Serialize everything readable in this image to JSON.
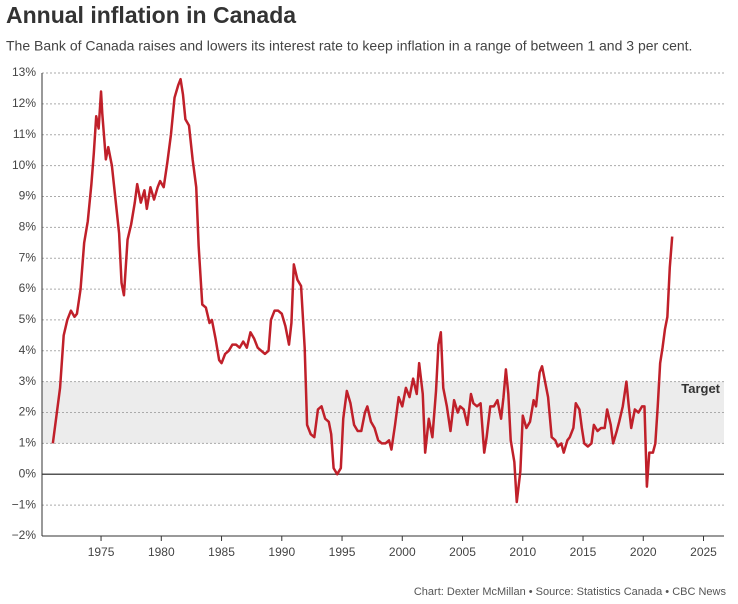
{
  "chart_data": {
    "type": "line",
    "title": "Annual inflation in Canada",
    "subtitle": "The Bank of Canada raises and lowers its interest rate to keep inflation in a range of between 1 and 3 per cent.",
    "credit": "Chart: Dexter McMillan • Source: Statistics Canada • CBC News",
    "color": "#c0202a",
    "grid": true,
    "xlim": [
      1970.1,
      2026.7
    ],
    "xticks": [
      1975,
      1980,
      1985,
      1990,
      1995,
      2000,
      2005,
      2010,
      2015,
      2020,
      2025
    ],
    "ylim": [
      -2,
      13
    ],
    "yticks": [
      {
        "value": -2,
        "label": "−2%"
      },
      {
        "value": -1,
        "label": "−1%"
      },
      {
        "value": 0,
        "label": "0%"
      },
      {
        "value": 1,
        "label": "1%"
      },
      {
        "value": 2,
        "label": "2%"
      },
      {
        "value": 3,
        "label": "3%"
      },
      {
        "value": 4,
        "label": "4%"
      },
      {
        "value": 5,
        "label": "5%"
      },
      {
        "value": 6,
        "label": "6%"
      },
      {
        "value": 7,
        "label": "7%"
      },
      {
        "value": 8,
        "label": "8%"
      },
      {
        "value": 9,
        "label": "9%"
      },
      {
        "value": 10,
        "label": "10%"
      },
      {
        "value": 11,
        "label": "11%"
      },
      {
        "value": 12,
        "label": "12%"
      },
      {
        "value": 13,
        "label": "13%"
      }
    ],
    "band": {
      "from": 1,
      "to": 3,
      "label": "Target",
      "color": "#ececec"
    },
    "x": [
      1971.0,
      1971.3,
      1971.6,
      1971.9,
      1972.2,
      1972.5,
      1972.8,
      1973.0,
      1973.3,
      1973.6,
      1973.9,
      1974.2,
      1974.4,
      1974.6,
      1974.8,
      1975.0,
      1975.1,
      1975.4,
      1975.6,
      1975.9,
      1976.2,
      1976.5,
      1976.7,
      1976.9,
      1977.2,
      1977.5,
      1977.8,
      1978.0,
      1978.3,
      1978.6,
      1978.8,
      1979.1,
      1979.4,
      1979.7,
      1979.9,
      1980.2,
      1980.5,
      1980.8,
      1981.1,
      1981.4,
      1981.6,
      1981.8,
      1982.0,
      1982.3,
      1982.6,
      1982.9,
      1983.1,
      1983.4,
      1983.7,
      1984.0,
      1984.2,
      1984.5,
      1984.8,
      1985.0,
      1985.3,
      1985.6,
      1985.9,
      1986.2,
      1986.5,
      1986.8,
      1987.1,
      1987.4,
      1987.7,
      1988.0,
      1988.3,
      1988.6,
      1988.9,
      1989.1,
      1989.4,
      1989.7,
      1990.0,
      1990.3,
      1990.6,
      1990.8,
      1991.0,
      1991.3,
      1991.6,
      1991.9,
      1992.1,
      1992.4,
      1992.7,
      1993.0,
      1993.3,
      1993.6,
      1993.9,
      1994.1,
      1994.3,
      1994.6,
      1994.9,
      1995.1,
      1995.4,
      1995.7,
      1996.0,
      1996.3,
      1996.6,
      1996.9,
      1997.1,
      1997.4,
      1997.7,
      1998.0,
      1998.3,
      1998.6,
      1998.9,
      1999.1,
      1999.4,
      1999.7,
      2000.0,
      2000.3,
      2000.6,
      2000.9,
      2001.2,
      2001.4,
      2001.7,
      2001.9,
      2002.2,
      2002.5,
      2002.8,
      2003.0,
      2003.2,
      2003.4,
      2003.7,
      2004.0,
      2004.3,
      2004.6,
      2004.8,
      2005.1,
      2005.4,
      2005.7,
      2005.9,
      2006.2,
      2006.5,
      2006.8,
      2007.0,
      2007.3,
      2007.6,
      2007.9,
      2008.2,
      2008.4,
      2008.6,
      2008.8,
      2009.0,
      2009.3,
      2009.5,
      2009.8,
      2010.0,
      2010.3,
      2010.6,
      2010.9,
      2011.1,
      2011.4,
      2011.6,
      2011.9,
      2012.1,
      2012.4,
      2012.7,
      2012.9,
      2013.2,
      2013.4,
      2013.7,
      2013.9,
      2014.2,
      2014.4,
      2014.7,
      2014.9,
      2015.1,
      2015.4,
      2015.7,
      2015.9,
      2016.2,
      2016.5,
      2016.8,
      2017.0,
      2017.3,
      2017.5,
      2017.8,
      2018.0,
      2018.3,
      2018.6,
      2018.8,
      2019.0,
      2019.3,
      2019.6,
      2019.9,
      2020.1,
      2020.3,
      2020.5,
      2020.8,
      2021.0,
      2021.2,
      2021.4,
      2021.6,
      2021.8,
      2022.0,
      2022.2,
      2022.4
    ],
    "values": [
      1.0,
      1.9,
      2.8,
      4.5,
      5.0,
      5.3,
      5.1,
      5.2,
      6.0,
      7.5,
      8.2,
      9.4,
      10.4,
      11.6,
      11.2,
      12.4,
      11.7,
      10.2,
      10.6,
      10.0,
      8.9,
      7.8,
      6.2,
      5.8,
      7.6,
      8.1,
      8.8,
      9.4,
      8.8,
      9.2,
      8.6,
      9.3,
      8.9,
      9.3,
      9.5,
      9.3,
      10.1,
      11.0,
      12.2,
      12.6,
      12.8,
      12.3,
      11.5,
      11.3,
      10.2,
      9.3,
      7.4,
      5.5,
      5.4,
      4.9,
      5.0,
      4.4,
      3.7,
      3.6,
      3.9,
      4.0,
      4.2,
      4.2,
      4.1,
      4.3,
      4.1,
      4.6,
      4.4,
      4.1,
      4.0,
      3.9,
      4.0,
      5.0,
      5.3,
      5.3,
      5.2,
      4.8,
      4.2,
      4.9,
      6.8,
      6.3,
      6.1,
      4.1,
      1.6,
      1.3,
      1.2,
      2.1,
      2.2,
      1.8,
      1.7,
      1.3,
      0.2,
      0.0,
      0.2,
      1.8,
      2.7,
      2.3,
      1.6,
      1.4,
      1.4,
      2.0,
      2.2,
      1.7,
      1.5,
      1.1,
      1.0,
      1.0,
      1.1,
      0.8,
      1.6,
      2.5,
      2.2,
      2.8,
      2.5,
      3.1,
      2.6,
      3.6,
      2.6,
      0.7,
      1.8,
      1.2,
      2.7,
      4.2,
      4.6,
      2.8,
      2.2,
      1.4,
      2.4,
      2.0,
      2.2,
      2.1,
      1.6,
      2.6,
      2.3,
      2.2,
      2.3,
      0.7,
      1.2,
      2.2,
      2.2,
      2.4,
      1.8,
      2.5,
      3.4,
      2.6,
      1.1,
      0.4,
      -0.9,
      0.1,
      1.9,
      1.5,
      1.7,
      2.4,
      2.2,
      3.3,
      3.5,
      2.9,
      2.5,
      1.2,
      1.1,
      0.9,
      1.0,
      0.7,
      1.1,
      1.2,
      1.5,
      2.3,
      2.1,
      1.5,
      1.0,
      0.9,
      1.0,
      1.6,
      1.4,
      1.5,
      1.5,
      2.1,
      1.6,
      1.0,
      1.4,
      1.7,
      2.2,
      3.0,
      2.2,
      1.5,
      2.1,
      2.0,
      2.2,
      2.2,
      -0.4,
      0.7,
      0.7,
      1.0,
      2.2,
      3.6,
      4.1,
      4.7,
      5.1,
      6.7,
      7.7
    ]
  }
}
